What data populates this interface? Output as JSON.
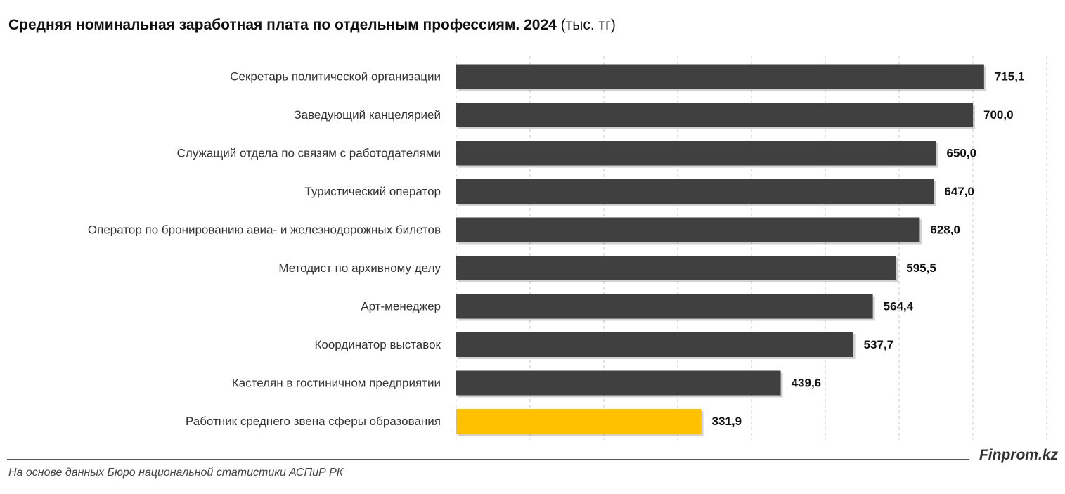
{
  "title_main": "Средняя номинальная заработная плата по отдельным профессиям. 2024",
  "title_unit": "(тыс. тг)",
  "source": "На основе данных Бюро национальной статистики АСПиР РК",
  "brand": "Finprom.kz",
  "colors": {
    "bar": "#404040",
    "highlight": "#ffc000",
    "grid": "#c8c8c8"
  },
  "chart_data": {
    "type": "bar",
    "orientation": "horizontal",
    "categories": [
      "Секретарь политической организации",
      "Заведующий канцелярией",
      "Служащий отдела по связям с работодателями",
      "Туристический оператор",
      "Оператор по бронированию авиа- и железнодорожных билетов",
      "Методист по архивному делу",
      "Арт-менеджер",
      "Координатор выставок",
      "Кастелян в гостиничном предприятии",
      "Работник среднего звена сферы образования"
    ],
    "values": [
      715.1,
      700.0,
      650.0,
      647.0,
      628.0,
      595.5,
      564.4,
      537.7,
      439.6,
      331.9
    ],
    "value_labels": [
      "715,1",
      "700,0",
      "650,0",
      "647,0",
      "628,0",
      "595,5",
      "564,4",
      "537,7",
      "439,6",
      "331,9"
    ],
    "highlight_index": 9,
    "xlim": [
      0,
      800
    ],
    "grid": true,
    "legend": false
  }
}
